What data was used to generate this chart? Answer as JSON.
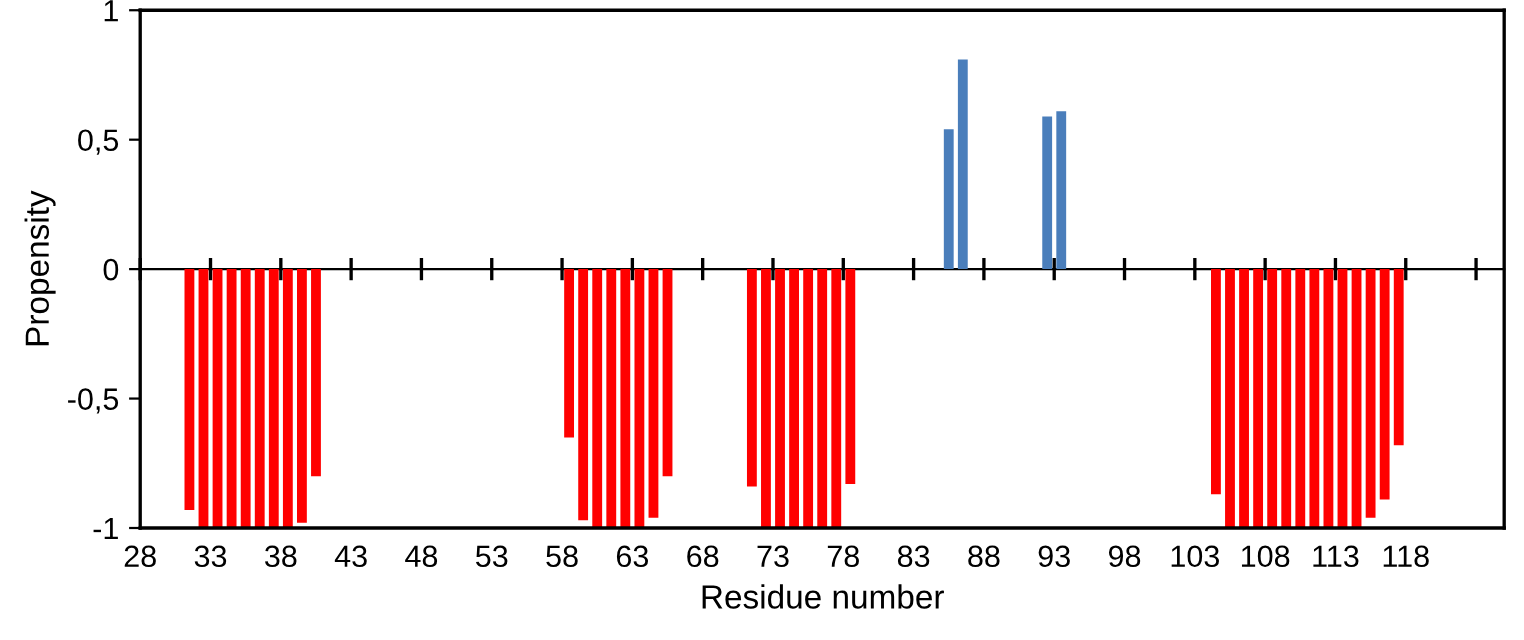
{
  "chart_data": {
    "type": "bar",
    "xlabel": "Residue number",
    "ylabel": "Propensity",
    "series": [
      {
        "color": "#ff0000",
        "x": [
          31.5,
          32.5,
          33.5,
          34.5,
          35.5,
          36.5,
          37.5,
          38.5,
          39.5,
          40.5,
          58.5,
          59.5,
          60.5,
          61.5,
          62.5,
          63.5,
          64.5,
          65.5,
          71.5,
          72.5,
          73.5,
          74.5,
          75.5,
          76.5,
          77.5,
          78.5,
          104.5,
          105.5,
          106.5,
          107.5,
          108.5,
          109.5,
          110.5,
          111.5,
          112.5,
          113.5,
          114.5,
          115.5,
          116.5,
          117.5
        ],
        "values": [
          -0.93,
          -1,
          -1,
          -1,
          -1,
          -1,
          -1,
          -1,
          -0.98,
          -0.8,
          -0.65,
          -0.97,
          -1,
          -1,
          -1,
          -1,
          -0.96,
          -0.8,
          -0.84,
          -1,
          -1,
          -1,
          -1,
          -1,
          -1,
          -0.83,
          -0.87,
          -1,
          -1,
          -1,
          -1,
          -1,
          -1,
          -1,
          -1,
          -1,
          -1,
          -0.96,
          -0.89,
          -0.68
        ]
      },
      {
        "color": "#4a7ebb",
        "x": [
          85.5,
          86.5,
          92.5,
          93.5
        ],
        "values": [
          0.54,
          0.81,
          0.59,
          0.61
        ]
      }
    ],
    "xlim": [
      28,
      125
    ],
    "ylim": [
      -1,
      1
    ],
    "xticks": [
      28,
      33,
      38,
      43,
      48,
      53,
      58,
      63,
      68,
      73,
      78,
      83,
      88,
      93,
      98,
      103,
      108,
      113,
      118,
      {
        "value": 123,
        "label": null
      }
    ],
    "yticks": [
      {
        "value": -1,
        "label": "-1"
      },
      {
        "value": -0.5,
        "label": "-0,5"
      },
      0,
      {
        "value": 0.5,
        "label": "0,5"
      },
      1
    ]
  }
}
